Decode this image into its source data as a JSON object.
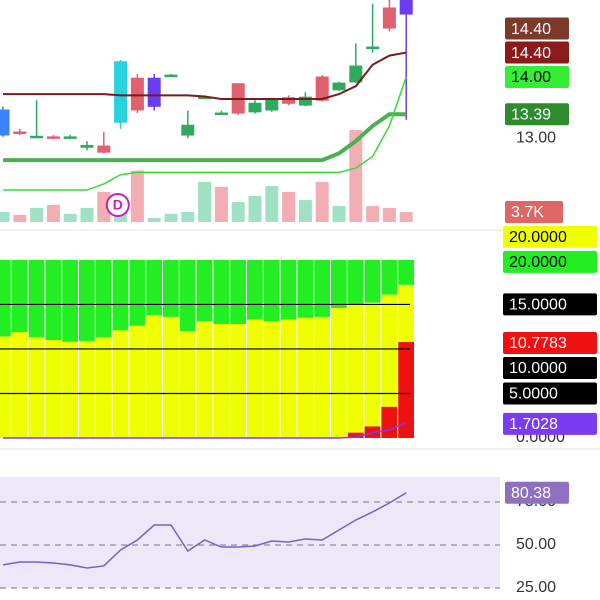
{
  "chart_data": [
    {
      "type": "candlestick",
      "open": [
        13.05,
        13.1,
        13.03,
        13.02,
        13.02,
        12.85,
        12.87,
        13.26,
        13.98,
        13.52,
        14.03,
        13.05,
        13.67,
        13.41,
        13.89,
        13.43,
        13.46,
        13.66,
        13.54,
        14.0,
        13.79,
        13.92,
        14.49,
        15.13,
        15.03
      ],
      "high": [
        13.52,
        13.15,
        13.62,
        13.05,
        13.05,
        12.95,
        13.1,
        14.28,
        14.05,
        14.05,
        14.05,
        13.45,
        13.7,
        13.45,
        13.89,
        13.62,
        13.66,
        13.7,
        13.75,
        14.03,
        13.92,
        14.55,
        15.2,
        15.26,
        15.26
      ],
      "low": [
        13.02,
        13.05,
        13.0,
        12.99,
        12.99,
        12.8,
        12.75,
        13.15,
        13.41,
        13.45,
        14.0,
        13.0,
        13.64,
        13.38,
        13.38,
        13.4,
        13.43,
        13.54,
        13.52,
        13.6,
        13.77,
        13.9,
        14.4,
        14.75,
        13.3
      ],
      "close": [
        13.46,
        13.08,
        13.03,
        13.02,
        13.02,
        12.88,
        12.77,
        14.25,
        13.46,
        13.98,
        14.03,
        13.21,
        13.67,
        13.41,
        13.41,
        13.57,
        13.62,
        13.57,
        13.67,
        13.62,
        13.9,
        14.18,
        14.49,
        14.8,
        15.26
      ],
      "colors": [
        "#3b82f6",
        "#e06070",
        "#2eaa5e",
        "#e06070",
        "#2eaa5e",
        "#2eaa5e",
        "#e06070",
        "#27d3e0",
        "#e06070",
        "#6a3df0",
        "#2eaa5e",
        "#2eaa5e",
        "#2eaa5e",
        "#2eaa5e",
        "#e06070",
        "#2eaa5e",
        "#2eaa5e",
        "#e06070",
        "#2eaa5e",
        "#e06070",
        "#2eaa5e",
        "#2eaa5e",
        "#2eaa5e",
        "#e06070",
        "#6a3df0"
      ],
      "ylim": [
        11.66,
        15.26
      ],
      "yticks": [
        {
          "value": 13,
          "label": "13.00"
        }
      ],
      "lines": [
        {
          "color": "#7a1a1a",
          "width": 2,
          "values": [
            13.72,
            13.72,
            13.72,
            13.72,
            13.72,
            13.72,
            13.72,
            13.7,
            13.7,
            13.7,
            13.7,
            13.7,
            13.68,
            13.64,
            13.64,
            13.64,
            13.64,
            13.64,
            13.64,
            13.64,
            13.72,
            13.85,
            14.2,
            14.35,
            14.4
          ]
        },
        {
          "color": "#4caf50",
          "width": 4,
          "values": [
            12.64,
            12.64,
            12.64,
            12.64,
            12.64,
            12.64,
            12.64,
            12.64,
            12.64,
            12.64,
            12.64,
            12.64,
            12.64,
            12.64,
            12.64,
            12.64,
            12.64,
            12.64,
            12.64,
            12.64,
            12.75,
            12.95,
            13.2,
            13.39,
            13.39
          ]
        },
        {
          "color": "#33dd33",
          "width": 1.5,
          "values": [
            12.15,
            12.15,
            12.15,
            12.15,
            12.15,
            12.15,
            12.25,
            12.4,
            12.44,
            12.44,
            12.44,
            12.44,
            12.44,
            12.44,
            12.44,
            12.44,
            12.44,
            12.44,
            12.44,
            12.44,
            12.44,
            12.51,
            12.7,
            13.2,
            14.0
          ]
        }
      ],
      "badges": [
        {
          "value": 14.4,
          "label": "14.40",
          "color": "#7b3a2a",
          "text_color": "#ffffff"
        },
        {
          "value": 14.4,
          "label": "14.40",
          "color": "#8b1a1a",
          "text_color": "#ffffff"
        },
        {
          "value": 14,
          "label": "14.00",
          "color": "#33ee33",
          "text_color": "#000000"
        },
        {
          "value": 13.39,
          "label": "13.39",
          "color": "#2e8b2e",
          "text_color": "#ffffff"
        }
      ],
      "markers": [
        {
          "index": 6,
          "label": "D"
        }
      ]
    },
    {
      "type": "bar",
      "values": [
        3.7,
        2.6,
        5.2,
        6.3,
        3.0,
        5.2,
        11.1,
        7.4,
        19,
        1.5,
        3.0,
        3.7,
        14.8,
        13,
        7.4,
        9.6,
        13.3,
        11.1,
        8.1,
        14.8,
        5.9,
        34,
        5.9,
        5.2,
        3.7
      ],
      "colors": [
        "#8fdcb8",
        "#f2a0a8",
        "#8fdcb8",
        "#f2a0a8",
        "#8fdcb8",
        "#8fdcb8",
        "#f2a0a8",
        "#8fdcb8",
        "#f2a0a8",
        "#8fdcb8",
        "#8fdcb8",
        "#8fdcb8",
        "#8fdcb8",
        "#f2a0a8",
        "#8fdcb8",
        "#8fdcb8",
        "#8fdcb8",
        "#f2a0a8",
        "#8fdcb8",
        "#f2a0a8",
        "#8fdcb8",
        "#f2a0a8",
        "#f2a0a8",
        "#f2a0a8",
        "#f2a0a8"
      ],
      "ylim": [
        0,
        82
      ],
      "badges": [
        {
          "value": 3.7,
          "label": "3.7K",
          "color": "#e06666",
          "text_color": "#ffffff"
        }
      ]
    },
    {
      "type": "stacked_bar",
      "series": [
        {
          "color": "#f0ff00",
          "values": [
            11.4,
            11.9,
            11.3,
            11.0,
            10.8,
            10.9,
            11.3,
            12.1,
            12.6,
            13.8,
            13.6,
            12.0,
            13.1,
            12.8,
            12.8,
            13.3,
            13.1,
            13.3,
            13.5,
            13.6,
            14.6,
            15.0,
            15.2,
            16.1,
            17.2
          ]
        },
        {
          "color": "#22ee22",
          "values": [
            8.6,
            8.1,
            8.7,
            9.0,
            9.2,
            9.1,
            8.7,
            7.9,
            7.4,
            6.2,
            6.4,
            8.0,
            6.9,
            7.2,
            7.2,
            6.7,
            6.9,
            6.7,
            6.5,
            6.4,
            5.4,
            5.0,
            4.8,
            3.9,
            2.8
          ]
        }
      ],
      "overlay": {
        "color": "#ee1111",
        "values": [
          0,
          0,
          0,
          0,
          0,
          0,
          0,
          0,
          0,
          0,
          0,
          0,
          0,
          0,
          0,
          0,
          0,
          0,
          0,
          0,
          0,
          0.6,
          1.3,
          3.5,
          10.7783
        ]
      },
      "line": {
        "color": "#7a3cf0",
        "values": [
          0,
          0,
          0,
          0,
          0,
          0,
          0,
          0,
          0,
          0,
          0,
          0,
          0,
          0,
          0,
          0,
          0,
          0,
          0,
          0,
          0,
          0.1,
          0.6,
          0.9,
          1.7028
        ]
      },
      "ylim": [
        0,
        21
      ],
      "yticks": [
        {
          "value": 0,
          "label": "0.0000"
        },
        {
          "value": 5,
          "label": "5.0000"
        },
        {
          "value": 10,
          "label": "10.0000"
        },
        {
          "value": 15,
          "label": "15.0000"
        }
      ],
      "badges": [
        {
          "value": 20,
          "label": "20.0000",
          "color": "#f0ff00",
          "text_color": "#000000"
        },
        {
          "value": 20,
          "label": "20.0000",
          "color": "#22ee22",
          "text_color": "#000000"
        },
        {
          "value": 10.7783,
          "label": "10.7783",
          "color": "#ee1111",
          "text_color": "#ffffff"
        },
        {
          "value": 1.7028,
          "label": "1.7028",
          "color": "#7a3cf0",
          "text_color": "#ffffff"
        }
      ]
    },
    {
      "type": "line",
      "values": [
        38.4,
        40.1,
        40.1,
        39.5,
        38.4,
        36.6,
        37.8,
        47.1,
        52.9,
        61.6,
        61.6,
        46.5,
        52.9,
        48.8,
        48.8,
        49.4,
        52.3,
        51.7,
        53.5,
        52.9,
        58.7,
        64.5,
        69.2,
        74.4,
        80.38
      ],
      "color": "#7a60c0",
      "ylim": [
        18,
        99.4
      ],
      "yticks": [
        {
          "value": 25,
          "label": "25.00"
        },
        {
          "value": 50,
          "label": "50.00"
        },
        {
          "value": 75,
          "label": "75.00"
        }
      ],
      "badges": [
        {
          "value": 80.38,
          "label": "80.38",
          "color": "#8e6fc0",
          "text_color": "#ffffff"
        }
      ]
    }
  ]
}
